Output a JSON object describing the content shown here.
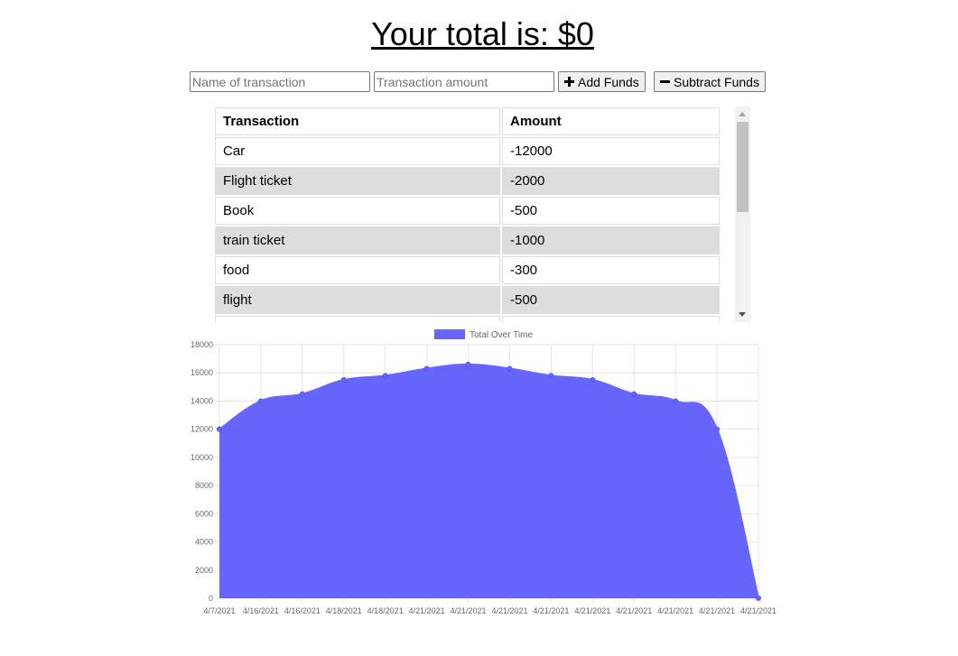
{
  "header": {
    "title": "Your total is: $0"
  },
  "form": {
    "name_placeholder": "Name of transaction",
    "amount_placeholder": "Transaction amount",
    "add_label": "Add Funds",
    "subtract_label": "Subtract Funds"
  },
  "table": {
    "headers": [
      "Transaction",
      "Amount"
    ],
    "rows": [
      {
        "name": "Car",
        "amount": "-12000"
      },
      {
        "name": "Flight ticket",
        "amount": "-2000"
      },
      {
        "name": "Book",
        "amount": "-500"
      },
      {
        "name": "train ticket",
        "amount": "-1000"
      },
      {
        "name": "food",
        "amount": "-300"
      },
      {
        "name": "flight",
        "amount": "-500"
      },
      {
        "name": "",
        "amount": ""
      }
    ]
  },
  "colors": {
    "fill": "#6666ff",
    "line": "#6666ff",
    "grid": "#e5e5e5",
    "row_alt": "#dddddd"
  },
  "chart_data": {
    "type": "area",
    "series": [
      {
        "name": "Total Over Time",
        "values": [
          12000,
          14000,
          14500,
          15500,
          15800,
          16300,
          16600,
          16300,
          15800,
          15500,
          14500,
          14000,
          12000,
          0
        ]
      }
    ],
    "x": [
      "4/7/2021",
      "4/16/2021",
      "4/16/2021",
      "4/18/2021",
      "4/18/2021",
      "4/21/2021",
      "4/21/2021",
      "4/21/2021",
      "4/21/2021",
      "4/21/2021",
      "4/21/2021",
      "4/21/2021",
      "4/21/2021",
      "4/21/2021"
    ],
    "y_ticks": [
      "0",
      "2000",
      "4000",
      "6000",
      "8000",
      "10000",
      "12000",
      "14000",
      "16000",
      "18000"
    ],
    "ylim": [
      0,
      18000
    ],
    "grid": true,
    "legend": "top-center"
  }
}
